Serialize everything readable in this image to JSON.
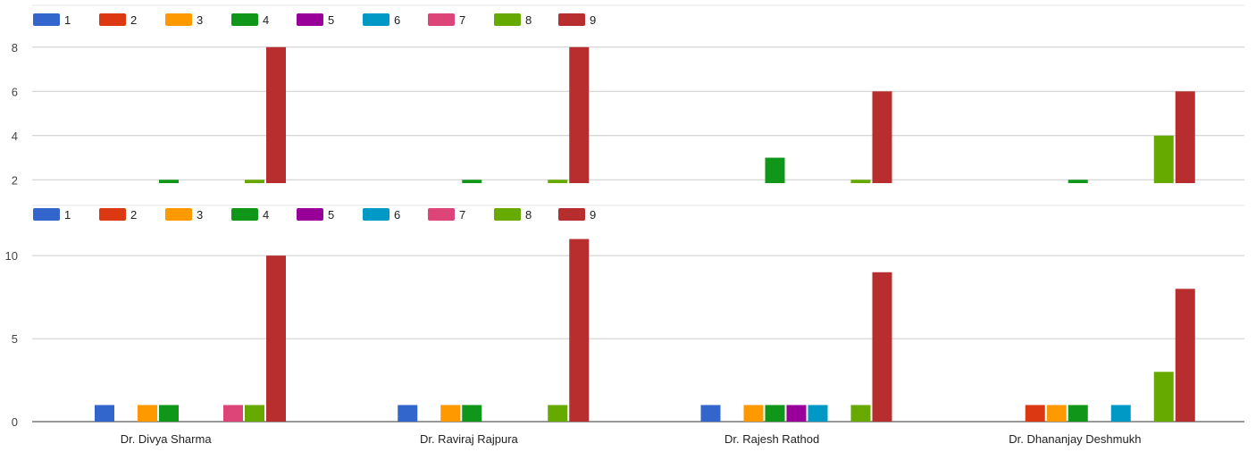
{
  "chart_data": [
    {
      "type": "bar",
      "categories": [
        "Dr. Divya Sharma",
        "Dr. Raviraj Rajpura",
        "Dr. Rajesh Rathod",
        "Dr. Dhananjay Deshmukh"
      ],
      "show_category_labels": false,
      "ylim": [
        1.85,
        8.8
      ],
      "yticks": [
        2,
        4,
        6,
        8
      ],
      "grid": true,
      "legend": "top-left",
      "series": [
        {
          "name": "1",
          "color": "#3366cc",
          "values": [
            0,
            0,
            0,
            0
          ]
        },
        {
          "name": "2",
          "color": "#dc3912",
          "values": [
            0,
            0,
            0,
            0
          ]
        },
        {
          "name": "3",
          "color": "#ff9900",
          "values": [
            0,
            0,
            0,
            0
          ]
        },
        {
          "name": "4",
          "color": "#109618",
          "values": [
            2,
            2,
            3,
            2
          ]
        },
        {
          "name": "5",
          "color": "#990099",
          "values": [
            0,
            0,
            0,
            0
          ]
        },
        {
          "name": "6",
          "color": "#0099c6",
          "values": [
            0,
            0,
            0,
            0
          ]
        },
        {
          "name": "7",
          "color": "#dd4477",
          "values": [
            0,
            0,
            0,
            0
          ]
        },
        {
          "name": "8",
          "color": "#66aa00",
          "values": [
            2,
            2,
            2,
            4
          ]
        },
        {
          "name": "9",
          "color": "#b82e2e",
          "values": [
            8,
            8,
            6,
            6
          ]
        }
      ]
    },
    {
      "type": "bar",
      "categories": [
        "Dr. Divya Sharma",
        "Dr. Raviraj Rajpura",
        "Dr. Rajesh Rathod",
        "Dr. Dhananjay Deshmukh"
      ],
      "show_category_labels": true,
      "ylim": [
        0,
        12
      ],
      "yticks": [
        0,
        5,
        10
      ],
      "grid": true,
      "legend": "top-left",
      "series": [
        {
          "name": "1",
          "color": "#3366cc",
          "values": [
            1,
            1,
            1,
            0
          ]
        },
        {
          "name": "2",
          "color": "#dc3912",
          "values": [
            0,
            0,
            0,
            1
          ]
        },
        {
          "name": "3",
          "color": "#ff9900",
          "values": [
            1,
            1,
            1,
            1
          ]
        },
        {
          "name": "4",
          "color": "#109618",
          "values": [
            1,
            1,
            1,
            1
          ]
        },
        {
          "name": "5",
          "color": "#990099",
          "values": [
            0,
            0,
            1,
            0
          ]
        },
        {
          "name": "6",
          "color": "#0099c6",
          "values": [
            0,
            0,
            1,
            1
          ]
        },
        {
          "name": "7",
          "color": "#dd4477",
          "values": [
            1,
            0,
            0,
            0
          ]
        },
        {
          "name": "8",
          "color": "#66aa00",
          "values": [
            1,
            1,
            1,
            3
          ]
        },
        {
          "name": "9",
          "color": "#b82e2e",
          "values": [
            10,
            11,
            9,
            8
          ]
        }
      ]
    }
  ]
}
